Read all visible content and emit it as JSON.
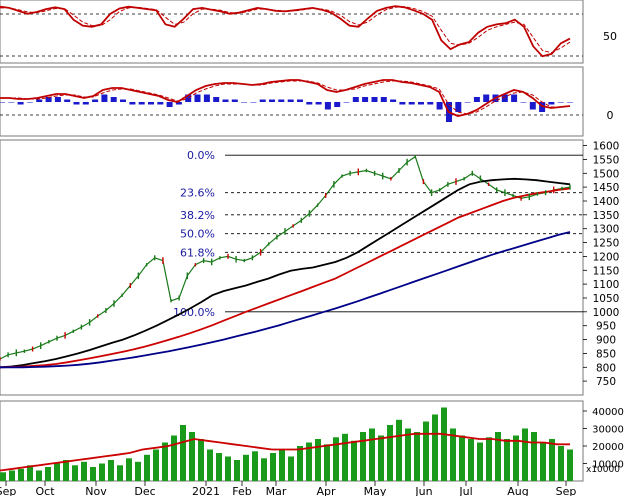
{
  "chart_data": [
    {
      "type": "line",
      "panel": "oscillator",
      "y_ticks": [
        "50"
      ],
      "ylim": [
        0,
        100
      ],
      "dashed_levels": [
        80,
        20
      ],
      "series": [
        {
          "color": "#c00000",
          "style": "solid",
          "values": [
            92,
            90,
            85,
            80,
            83,
            88,
            91,
            88,
            70,
            60,
            58,
            62,
            80,
            89,
            92,
            90,
            88,
            86,
            62,
            58,
            72,
            88,
            90,
            87,
            84,
            80,
            82,
            86,
            90,
            88,
            85,
            84,
            86,
            88,
            90,
            87,
            82,
            72,
            60,
            58,
            72,
            85,
            90,
            93,
            91,
            86,
            80,
            70,
            35,
            20,
            28,
            32,
            48,
            58,
            62,
            64,
            70,
            58,
            25,
            8,
            12,
            30,
            38
          ]
        },
        {
          "color": "#c00000",
          "style": "dashed",
          "values": [
            90,
            90,
            87,
            83,
            82,
            85,
            89,
            89,
            78,
            66,
            60,
            60,
            70,
            84,
            90,
            91,
            89,
            87,
            74,
            62,
            66,
            80,
            88,
            88,
            86,
            82,
            81,
            84,
            88,
            88,
            86,
            85,
            85,
            87,
            89,
            88,
            85,
            78,
            67,
            61,
            66,
            78,
            87,
            91,
            92,
            89,
            84,
            76,
            52,
            30,
            27,
            30,
            40,
            52,
            58,
            62,
            66,
            62,
            40,
            18,
            14,
            22,
            32
          ]
        }
      ]
    },
    {
      "type": "line",
      "panel": "macd",
      "y_ticks": [
        "0"
      ],
      "ylim": [
        -32,
        32
      ],
      "zero_line": 0,
      "series": [
        {
          "color": "#c00000",
          "style": "solid",
          "values": [
            4,
            4,
            3,
            3,
            4,
            6,
            8,
            8,
            6,
            4,
            6,
            12,
            14,
            14,
            12,
            10,
            8,
            6,
            2,
            0,
            6,
            12,
            16,
            18,
            19,
            19,
            18,
            17,
            18,
            20,
            21,
            22,
            22,
            20,
            18,
            12,
            10,
            12,
            15,
            18,
            20,
            22,
            22,
            20,
            19,
            17,
            15,
            10,
            -10,
            -14,
            -12,
            -8,
            -2,
            4,
            8,
            12,
            10,
            4,
            -4,
            -6,
            -5,
            -4
          ]
        },
        {
          "color": "#c00000",
          "style": "dashed",
          "values": [
            4,
            4,
            4,
            3,
            3,
            4,
            6,
            7,
            7,
            5,
            5,
            9,
            12,
            13,
            13,
            11,
            9,
            7,
            4,
            1,
            3,
            9,
            13,
            16,
            18,
            18,
            18,
            17,
            17,
            19,
            20,
            21,
            21,
            21,
            19,
            15,
            12,
            12,
            13,
            16,
            18,
            20,
            21,
            21,
            20,
            18,
            16,
            13,
            -2,
            -10,
            -12,
            -10,
            -5,
            1,
            5,
            9,
            10,
            7,
            0,
            -5,
            -5,
            -4
          ]
        },
        {
          "name": "histogram",
          "color": "#1a1acc",
          "type": "bar",
          "values": [
            0,
            0,
            -1,
            0,
            1,
            2,
            2,
            1,
            -1,
            -1,
            1,
            3,
            2,
            1,
            -1,
            -1,
            -1,
            -1,
            -2,
            -1,
            3,
            3,
            3,
            2,
            1,
            1,
            0,
            0,
            1,
            1,
            1,
            1,
            1,
            -1,
            -1,
            -3,
            -2,
            0,
            2,
            2,
            2,
            2,
            1,
            -1,
            -1,
            -1,
            -1,
            -3,
            -8,
            -4,
            0,
            2,
            3,
            3,
            3,
            3,
            0,
            -3,
            -4,
            -1,
            0,
            0
          ]
        }
      ]
    },
    {
      "type": "line",
      "panel": "price",
      "ylim": [
        700,
        1620
      ],
      "y_ticks": [
        "1600",
        "1550",
        "1500",
        "1450",
        "1400",
        "1350",
        "1300",
        "1250",
        "1200",
        "1150",
        "1100",
        "1050",
        "1000",
        "950",
        "900",
        "850",
        "800",
        "750"
      ],
      "fibonacci": [
        {
          "label": "0.0%",
          "value": 1565
        },
        {
          "label": "23.6%",
          "value": 1430
        },
        {
          "label": "38.2%",
          "value": 1350
        },
        {
          "label": "50.0%",
          "value": 1282
        },
        {
          "label": "61.8%",
          "value": 1215
        },
        {
          "label": "100.0%",
          "value": 1000
        }
      ],
      "series": [
        {
          "name": "price",
          "color": "#1a7a1a",
          "values": [
            830,
            845,
            852,
            858,
            866,
            878,
            892,
            905,
            915,
            930,
            945,
            962,
            985,
            1005,
            1030,
            1060,
            1095,
            1130,
            1170,
            1195,
            1185,
            1040,
            1050,
            1130,
            1170,
            1185,
            1180,
            1195,
            1200,
            1190,
            1185,
            1195,
            1215,
            1245,
            1270,
            1290,
            1310,
            1330,
            1355,
            1385,
            1420,
            1460,
            1490,
            1500,
            1505,
            1510,
            1500,
            1490,
            1480,
            1510,
            1540,
            1560,
            1470,
            1430,
            1440,
            1460,
            1470,
            1480,
            1500,
            1480,
            1460,
            1440,
            1430,
            1420,
            1410,
            1415,
            1425,
            1430,
            1440,
            1445,
            1450
          ]
        },
        {
          "name": "ma-black",
          "color": "#000000",
          "values": [
            800,
            803,
            808,
            815,
            822,
            830,
            840,
            850,
            862,
            875,
            888,
            900,
            915,
            932,
            950,
            970,
            990,
            1012,
            1035,
            1060,
            1075,
            1085,
            1095,
            1108,
            1120,
            1135,
            1148,
            1155,
            1160,
            1170,
            1180,
            1195,
            1215,
            1240,
            1265,
            1290,
            1315,
            1340,
            1365,
            1390,
            1415,
            1440,
            1460,
            1470,
            1475,
            1478,
            1480,
            1478,
            1475,
            1470,
            1465,
            1460
          ]
        },
        {
          "name": "ma-red",
          "color": "#cc0000",
          "values": [
            800,
            801,
            802,
            805,
            808,
            812,
            818,
            825,
            832,
            840,
            848,
            856,
            865,
            875,
            886,
            898,
            910,
            923,
            937,
            952,
            968,
            984,
            1000,
            1015,
            1030,
            1045,
            1060,
            1075,
            1090,
            1105,
            1120,
            1140,
            1160,
            1180,
            1200,
            1220,
            1240,
            1260,
            1280,
            1300,
            1320,
            1340,
            1355,
            1370,
            1385,
            1400,
            1412,
            1420,
            1428,
            1434,
            1440,
            1445
          ]
        },
        {
          "name": "ma-blue",
          "color": "#000088",
          "values": [
            800,
            800,
            800,
            801,
            802,
            804,
            806,
            809,
            813,
            818,
            824,
            830,
            836,
            843,
            850,
            857,
            865,
            873,
            882,
            891,
            900,
            910,
            920,
            930,
            941,
            952,
            964,
            976,
            988,
            1000,
            1012,
            1025,
            1038,
            1052,
            1066,
            1080,
            1094,
            1108,
            1122,
            1136,
            1150,
            1164,
            1178,
            1192,
            1206,
            1218,
            1230,
            1242,
            1254,
            1266,
            1278,
            1288
          ]
        }
      ]
    },
    {
      "type": "bar",
      "panel": "volume",
      "ylim": [
        0,
        44000
      ],
      "y_ticks": [
        "40000",
        "30000",
        "20000",
        "10000"
      ],
      "unit_label": "x10000",
      "x_tick_labels": [
        "Sep",
        "Oct",
        "Nov",
        "Dec",
        "2021",
        "Feb",
        "Mar",
        "Apr",
        "May",
        "Jun",
        "Jul",
        "Aug",
        "Sep"
      ],
      "series": [
        {
          "name": "volume",
          "color": "#1a9a1a",
          "type": "bar",
          "values": [
            5000,
            6000,
            7000,
            9000,
            6000,
            8000,
            10000,
            12000,
            9000,
            11000,
            8000,
            10000,
            12000,
            9000,
            13000,
            11000,
            15000,
            18000,
            22000,
            26000,
            32000,
            28000,
            24000,
            18000,
            16000,
            14000,
            12000,
            15000,
            17000,
            13000,
            16000,
            18000,
            14000,
            20000,
            22000,
            24000,
            21000,
            25000,
            27000,
            23000,
            28000,
            30000,
            26000,
            32000,
            35000,
            30000,
            28000,
            34000,
            38000,
            42000,
            30000,
            26000,
            24000,
            22000,
            25000,
            28000,
            24000,
            26000,
            30000,
            28000,
            22000,
            24000,
            20000,
            18000
          ]
        },
        {
          "name": "volume-ma",
          "color": "#cc0000",
          "type": "line",
          "values": [
            6000,
            7000,
            8000,
            9000,
            10000,
            11000,
            12000,
            13000,
            14000,
            15000,
            16000,
            18000,
            19000,
            20000,
            22000,
            24000,
            23000,
            22000,
            21000,
            20000,
            19000,
            18000,
            18000,
            18000,
            19000,
            20000,
            21000,
            22000,
            23000,
            24000,
            25000,
            26000,
            27000,
            27000,
            27000,
            26000,
            25000,
            24000,
            24000,
            23000,
            23000,
            22000,
            22000,
            21000,
            21000
          ]
        }
      ]
    }
  ]
}
